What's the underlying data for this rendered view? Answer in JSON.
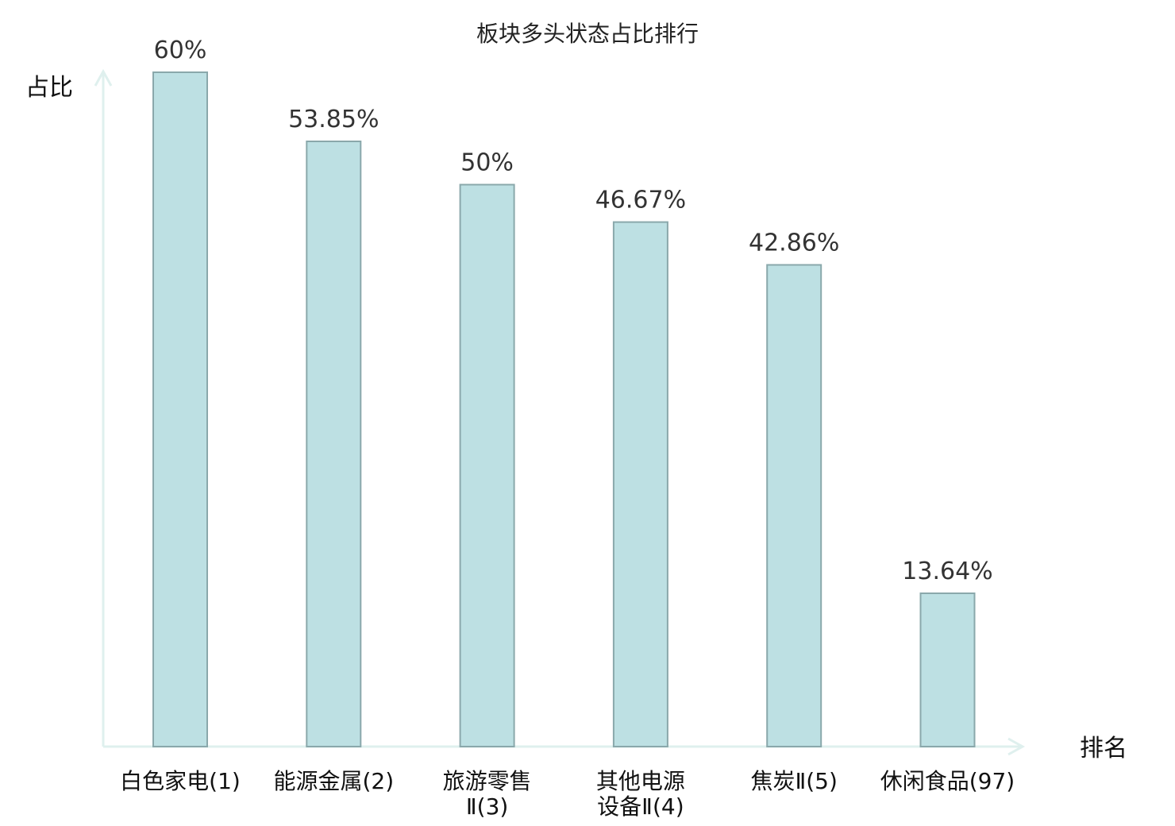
{
  "chart_data": {
    "type": "bar",
    "title": "板块多头状态占比排行",
    "xlabel": "排名",
    "ylabel": "占比",
    "ylim": [
      0,
      60
    ],
    "grid": false,
    "categories": [
      "白色家电(1)",
      "能源金属(2)",
      "旅游零售Ⅱ(3)",
      "其他电源设备Ⅱ(4)",
      "焦炭Ⅱ(5)",
      "休闲食品(97)"
    ],
    "category_lines": [
      [
        "白色家电(1)"
      ],
      [
        "能源金属(2)"
      ],
      [
        "旅游零售",
        "Ⅱ(3)"
      ],
      [
        "其他电源",
        "设备Ⅱ(4)"
      ],
      [
        "焦炭Ⅱ(5)"
      ],
      [
        "休闲食品(97)"
      ]
    ],
    "values": [
      60,
      53.85,
      50,
      46.67,
      42.86,
      13.64
    ],
    "value_labels": [
      "60%",
      "53.85%",
      "50%",
      "46.67%",
      "42.86%",
      "13.64%"
    ],
    "highlight_index": 5,
    "colors": {
      "bar_fill": "#bde0e3",
      "bar_stroke": "#8aa8ab",
      "axis": "#dff0ee",
      "highlight_text": "#e00000"
    }
  }
}
